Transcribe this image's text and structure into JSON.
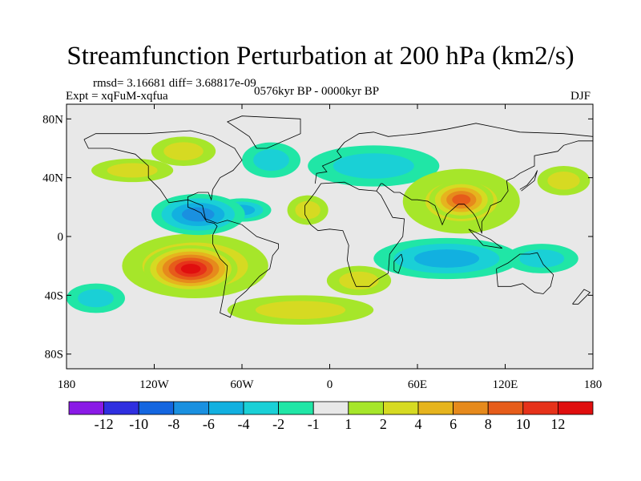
{
  "chart_data": {
    "type": "heatmap",
    "title": "Streamfunction Perturbation at 200 hPa (km2/s)",
    "stats": "rmsd= 3.16681 diff= 3.68817e-09",
    "experiment": "Expt = xqFuM-xqfua",
    "period": "0576kyr BP - 0000kyr BP",
    "season": "DJF",
    "x_ticks": [
      "180",
      "120W",
      "60W",
      "0",
      "60E",
      "120E",
      "180"
    ],
    "y_ticks": [
      "80N",
      "40N",
      "0",
      "40S",
      "80S"
    ],
    "xlim": [
      -180,
      180
    ],
    "ylim": [
      -90,
      90
    ],
    "colorbar_labels": [
      "-12",
      "-10",
      "-8",
      "-6",
      "-4",
      "-2",
      "-1",
      "1",
      "2",
      "4",
      "6",
      "8",
      "10",
      "12"
    ],
    "colorbar_colors": [
      "#8a1ae6",
      "#2f2fe0",
      "#1466e0",
      "#1a90e0",
      "#12b0e0",
      "#1ad0d6",
      "#20e6a6",
      "#e8e8e8",
      "#a6e62a",
      "#d6da22",
      "#e6b41e",
      "#e68a1c",
      "#e65c1a",
      "#e6321a",
      "#e00e0e"
    ],
    "features": [
      {
        "name": "south-america-low",
        "lon": -95,
        "lat": -22,
        "rx": 32,
        "ry": 16,
        "value": 12
      },
      {
        "name": "south-america-high-ring",
        "lon": -92,
        "lat": -20,
        "rx": 50,
        "ry": 22,
        "value": 5
      },
      {
        "name": "asia-high",
        "lon": 90,
        "lat": 25,
        "rx": 22,
        "ry": 13,
        "value": 8
      },
      {
        "name": "asia-high-ring",
        "lon": 90,
        "lat": 24,
        "rx": 40,
        "ry": 22,
        "value": 3
      },
      {
        "name": "south-atlantic-high",
        "lon": 20,
        "lat": -30,
        "rx": 22,
        "ry": 10,
        "value": 3
      },
      {
        "name": "n-atlantic-high",
        "lon": -15,
        "lat": 18,
        "rx": 14,
        "ry": 10,
        "value": 2
      },
      {
        "name": "n-pacific-high",
        "lon": -135,
        "lat": 45,
        "rx": 28,
        "ry": 8,
        "value": 2
      },
      {
        "name": "n-america-high",
        "lon": -100,
        "lat": 58,
        "rx": 22,
        "ry": 10,
        "value": 2
      },
      {
        "name": "tropical-atlantic-low",
        "lon": -90,
        "lat": 15,
        "rx": 32,
        "ry": 14,
        "value": -6
      },
      {
        "name": "caribbean-low",
        "lon": -60,
        "lat": 18,
        "rx": 20,
        "ry": 8,
        "value": -4
      },
      {
        "name": "n-atlantic-low",
        "lon": -40,
        "lat": 52,
        "rx": 20,
        "ry": 12,
        "value": -2
      },
      {
        "name": "africa-low",
        "lon": 30,
        "lat": 48,
        "rx": 45,
        "ry": 14,
        "value": -2
      },
      {
        "name": "indian-ocean-low",
        "lon": 80,
        "lat": -15,
        "rx": 50,
        "ry": 14,
        "value": -4
      },
      {
        "name": "west-pacific-low",
        "lon": 145,
        "lat": -15,
        "rx": 25,
        "ry": 10,
        "value": -2
      },
      {
        "name": "se-pacific-low",
        "lon": -160,
        "lat": -42,
        "rx": 20,
        "ry": 10,
        "value": -2
      },
      {
        "name": "subantarctic-high",
        "lon": -20,
        "lat": -50,
        "rx": 50,
        "ry": 10,
        "value": 2
      },
      {
        "name": "n-pacific-east-high",
        "lon": 160,
        "lat": 38,
        "rx": 18,
        "ry": 10,
        "value": 2
      }
    ]
  }
}
